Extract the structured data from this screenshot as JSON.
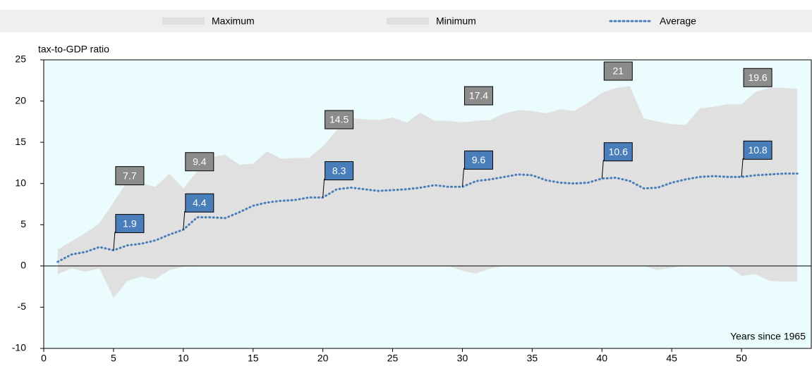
{
  "chart_data": {
    "type": "area-line",
    "y_label": "tax-to-GDP ratio",
    "x_label": "Years since 1965",
    "x": [
      1,
      2,
      3,
      4,
      5,
      6,
      7,
      8,
      9,
      10,
      11,
      12,
      13,
      14,
      15,
      16,
      17,
      18,
      19,
      20,
      21,
      22,
      23,
      24,
      25,
      26,
      27,
      28,
      29,
      30,
      31,
      32,
      33,
      34,
      35,
      36,
      37,
      38,
      39,
      40,
      41,
      42,
      43,
      44,
      45,
      46,
      47,
      48,
      49,
      50,
      51,
      52,
      53,
      54
    ],
    "series": [
      {
        "name": "Maximum",
        "kind": "area",
        "color": "#e0e0e0",
        "label_color": "#8c8c8c",
        "values": [
          2.0,
          3.0,
          4.0,
          5.2,
          7.7,
          10.3,
          10.0,
          9.6,
          11.2,
          9.4,
          11.5,
          13.2,
          13.5,
          12.3,
          12.4,
          13.9,
          13.0,
          13.1,
          13.1,
          14.5,
          16.5,
          17.9,
          17.8,
          17.7,
          18.0,
          17.4,
          18.6,
          17.6,
          17.6,
          17.4,
          17.6,
          17.7,
          18.5,
          18.9,
          18.8,
          18.5,
          19.0,
          18.8,
          19.8,
          21.0,
          21.6,
          21.8,
          17.9,
          17.5,
          17.2,
          17.1,
          19.1,
          19.3,
          19.6,
          19.6,
          21.1,
          21.6,
          21.6,
          21.5
        ]
      },
      {
        "name": "Minimum",
        "kind": "area",
        "color": "#e0e0e0",
        "values": [
          -1.0,
          -0.3,
          -0.7,
          -0.3,
          -3.9,
          -1.8,
          -1.3,
          -1.6,
          -0.5,
          -0.1,
          0,
          0,
          0,
          0,
          0,
          0,
          0,
          0,
          0,
          0,
          0,
          0,
          0,
          0,
          0,
          0,
          0,
          0,
          0,
          -0.6,
          -0.9,
          -0.3,
          0,
          0,
          0,
          0,
          0,
          0,
          0,
          0,
          0,
          0,
          0,
          -0.5,
          -0.2,
          0,
          0,
          0,
          0,
          -1.2,
          -1.0,
          -1.8,
          -1.9,
          -1.9
        ]
      },
      {
        "name": "Average",
        "kind": "line",
        "line_style": "dotted",
        "color": "#4a7ebb",
        "label_color": "#4a7ebb",
        "values": [
          0.5,
          1.4,
          1.7,
          2.3,
          1.9,
          2.5,
          2.7,
          3.1,
          3.8,
          4.4,
          5.9,
          5.9,
          5.8,
          6.5,
          7.3,
          7.7,
          7.9,
          8.0,
          8.3,
          8.3,
          9.3,
          9.5,
          9.3,
          9.1,
          9.2,
          9.3,
          9.5,
          9.8,
          9.6,
          9.6,
          10.3,
          10.5,
          10.8,
          11.1,
          11.0,
          10.4,
          10.1,
          10.0,
          10.1,
          10.6,
          10.7,
          10.3,
          9.4,
          9.5,
          10.1,
          10.5,
          10.8,
          10.9,
          10.8,
          10.8,
          11.0,
          11.1,
          11.2,
          11.2
        ]
      }
    ],
    "labeled_x": [
      5,
      10,
      20,
      30,
      40,
      50
    ],
    "xlim": [
      0,
      55
    ],
    "ylim": [
      -10,
      25
    ],
    "xticks": [
      0,
      5,
      10,
      15,
      20,
      25,
      30,
      35,
      40,
      45,
      50
    ],
    "yticks": [
      -10,
      -5,
      0,
      5,
      10,
      15,
      20,
      25
    ],
    "plot_background": "#eafcfe",
    "legend": "top"
  }
}
